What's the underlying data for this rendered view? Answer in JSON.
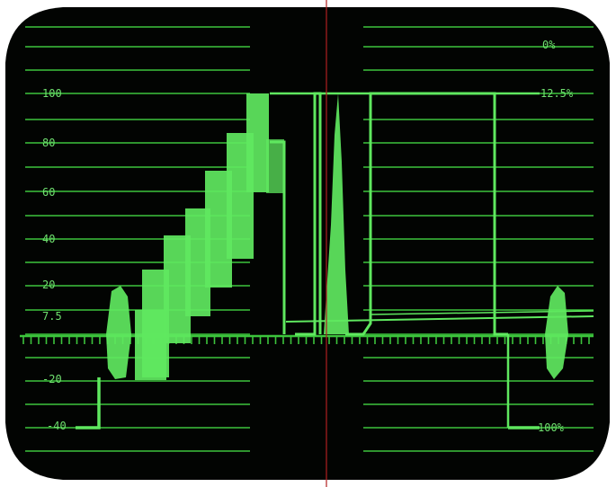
{
  "waveform_monitor": {
    "left_scale": [
      "100",
      "80",
      "60",
      "40",
      "20",
      "7.5",
      "-20",
      "-40"
    ],
    "right_scale": [
      "0%",
      "12.5%",
      "100%"
    ],
    "colors": {
      "screen": "#020402",
      "bezel": "#ffffff",
      "graticule": "#3cc43c",
      "trace": "#5fe85f",
      "center_marker": "#b02020"
    }
  }
}
